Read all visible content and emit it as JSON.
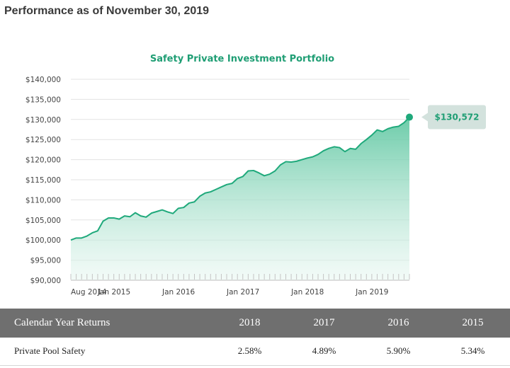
{
  "page": {
    "heading": "Performance as of November 30, 2019"
  },
  "chart_data": {
    "type": "area",
    "title": "Safety Private Investment Portfolio",
    "xlabel": "",
    "ylabel": "",
    "ylim": [
      90000,
      140000
    ],
    "yticks": [
      90000,
      95000,
      100000,
      105000,
      110000,
      115000,
      120000,
      125000,
      130000,
      135000,
      140000
    ],
    "ytick_labels": [
      "$90,000",
      "$95,000",
      "$100,000",
      "$105,000",
      "$110,000",
      "$115,000",
      "$120,000",
      "$125,000",
      "$130,000",
      "$135,000",
      "$140,000"
    ],
    "x_range": [
      "2014-08",
      "2019-11"
    ],
    "xtick_labels": [
      {
        "date": "2014-08",
        "label": "Aug 2014"
      },
      {
        "date": "2015-01",
        "label": "Jan 2015"
      },
      {
        "date": "2016-01",
        "label": "Jan 2016"
      },
      {
        "date": "2017-01",
        "label": "Jan 2017"
      },
      {
        "date": "2018-01",
        "label": "Jan 2018"
      },
      {
        "date": "2019-01",
        "label": "Jan 2019"
      }
    ],
    "series": [
      {
        "color": "#1fa97b",
        "points": [
          {
            "x": "2014-08",
            "y": 100000
          },
          {
            "x": "2014-09",
            "y": 100500
          },
          {
            "x": "2014-10",
            "y": 100500
          },
          {
            "x": "2014-11",
            "y": 101000
          },
          {
            "x": "2014-12",
            "y": 101800
          },
          {
            "x": "2015-01",
            "y": 102300
          },
          {
            "x": "2015-02",
            "y": 104700
          },
          {
            "x": "2015-03",
            "y": 105500
          },
          {
            "x": "2015-04",
            "y": 105500
          },
          {
            "x": "2015-05",
            "y": 105200
          },
          {
            "x": "2015-06",
            "y": 106000
          },
          {
            "x": "2015-07",
            "y": 105800
          },
          {
            "x": "2015-08",
            "y": 106800
          },
          {
            "x": "2015-09",
            "y": 106000
          },
          {
            "x": "2015-10",
            "y": 105700
          },
          {
            "x": "2015-11",
            "y": 106700
          },
          {
            "x": "2015-12",
            "y": 107100
          },
          {
            "x": "2016-01",
            "y": 107500
          },
          {
            "x": "2016-02",
            "y": 107000
          },
          {
            "x": "2016-03",
            "y": 106600
          },
          {
            "x": "2016-04",
            "y": 107900
          },
          {
            "x": "2016-05",
            "y": 108100
          },
          {
            "x": "2016-06",
            "y": 109200
          },
          {
            "x": "2016-07",
            "y": 109500
          },
          {
            "x": "2016-08",
            "y": 110900
          },
          {
            "x": "2016-09",
            "y": 111700
          },
          {
            "x": "2016-10",
            "y": 112000
          },
          {
            "x": "2016-11",
            "y": 112600
          },
          {
            "x": "2016-12",
            "y": 113200
          },
          {
            "x": "2017-01",
            "y": 113800
          },
          {
            "x": "2017-02",
            "y": 114100
          },
          {
            "x": "2017-03",
            "y": 115300
          },
          {
            "x": "2017-04",
            "y": 115800
          },
          {
            "x": "2017-05",
            "y": 117200
          },
          {
            "x": "2017-06",
            "y": 117300
          },
          {
            "x": "2017-07",
            "y": 116700
          },
          {
            "x": "2017-08",
            "y": 116000
          },
          {
            "x": "2017-09",
            "y": 116400
          },
          {
            "x": "2017-10",
            "y": 117200
          },
          {
            "x": "2017-11",
            "y": 118700
          },
          {
            "x": "2017-12",
            "y": 119500
          },
          {
            "x": "2018-01",
            "y": 119400
          },
          {
            "x": "2018-02",
            "y": 119600
          },
          {
            "x": "2018-03",
            "y": 120000
          },
          {
            "x": "2018-04",
            "y": 120400
          },
          {
            "x": "2018-05",
            "y": 120700
          },
          {
            "x": "2018-06",
            "y": 121300
          },
          {
            "x": "2018-07",
            "y": 122200
          },
          {
            "x": "2018-08",
            "y": 122800
          },
          {
            "x": "2018-09",
            "y": 123200
          },
          {
            "x": "2018-10",
            "y": 123000
          },
          {
            "x": "2018-11",
            "y": 122000
          },
          {
            "x": "2018-12",
            "y": 122800
          },
          {
            "x": "2019-01",
            "y": 122600
          },
          {
            "x": "2019-02",
            "y": 124000
          },
          {
            "x": "2019-03",
            "y": 125000
          },
          {
            "x": "2019-04",
            "y": 126100
          },
          {
            "x": "2019-05",
            "y": 127400
          },
          {
            "x": "2019-06",
            "y": 127000
          },
          {
            "x": "2019-07",
            "y": 127700
          },
          {
            "x": "2019-08",
            "y": 128100
          },
          {
            "x": "2019-09",
            "y": 128300
          },
          {
            "x": "2019-10",
            "y": 129200
          },
          {
            "x": "2019-11",
            "y": 130572
          }
        ]
      }
    ],
    "callout": {
      "label": "$130,572",
      "x": "2019-11",
      "y": 130572
    },
    "grid": "horizontal",
    "legend": "none"
  },
  "table": {
    "header_label": "Calendar Year Returns",
    "years": [
      "2018",
      "2017",
      "2016",
      "2015"
    ],
    "rows": [
      {
        "label": "Private Pool Safety",
        "values": [
          "2.58%",
          "4.89%",
          "5.90%",
          "5.34%"
        ]
      }
    ]
  }
}
